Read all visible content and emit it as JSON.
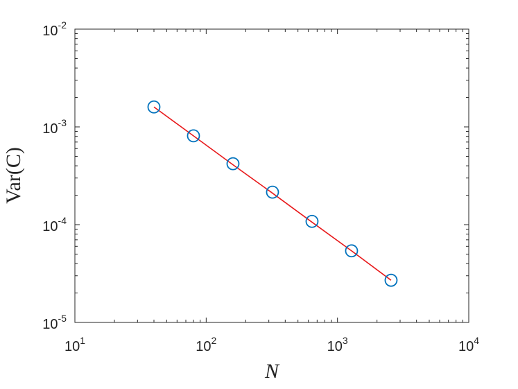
{
  "chart_data": {
    "type": "scatter",
    "xlabel": "N",
    "ylabel": "Var(C)",
    "xscale": "log",
    "yscale": "log",
    "xlim": [
      10,
      10000
    ],
    "ylim": [
      1e-05,
      0.01
    ],
    "xticks": [
      {
        "value": 10,
        "label": "10^1"
      },
      {
        "value": 100,
        "label": "10^2"
      },
      {
        "value": 1000,
        "label": "10^3"
      },
      {
        "value": 10000,
        "label": "10^4"
      }
    ],
    "yticks": [
      {
        "value": 1e-05,
        "label": "10^-5"
      },
      {
        "value": 0.0001,
        "label": "10^-4"
      },
      {
        "value": 0.001,
        "label": "10^-3"
      },
      {
        "value": 0.01,
        "label": "10^-2"
      }
    ],
    "series": [
      {
        "type": "scatter",
        "color": "#0072bd",
        "x": [
          40,
          80,
          160,
          320,
          640,
          1280,
          2560
        ],
        "values": [
          0.0016,
          0.00081,
          0.00042,
          0.000215,
          0.000108,
          5.4e-05,
          2.7e-05
        ]
      },
      {
        "type": "line",
        "color": "#e8191b",
        "x": [
          40,
          80,
          160,
          320,
          640,
          1280,
          2560
        ],
        "values": [
          0.0016,
          0.00081,
          0.00041,
          0.00021,
          0.000106,
          5.4e-05,
          2.7e-05
        ]
      }
    ]
  }
}
